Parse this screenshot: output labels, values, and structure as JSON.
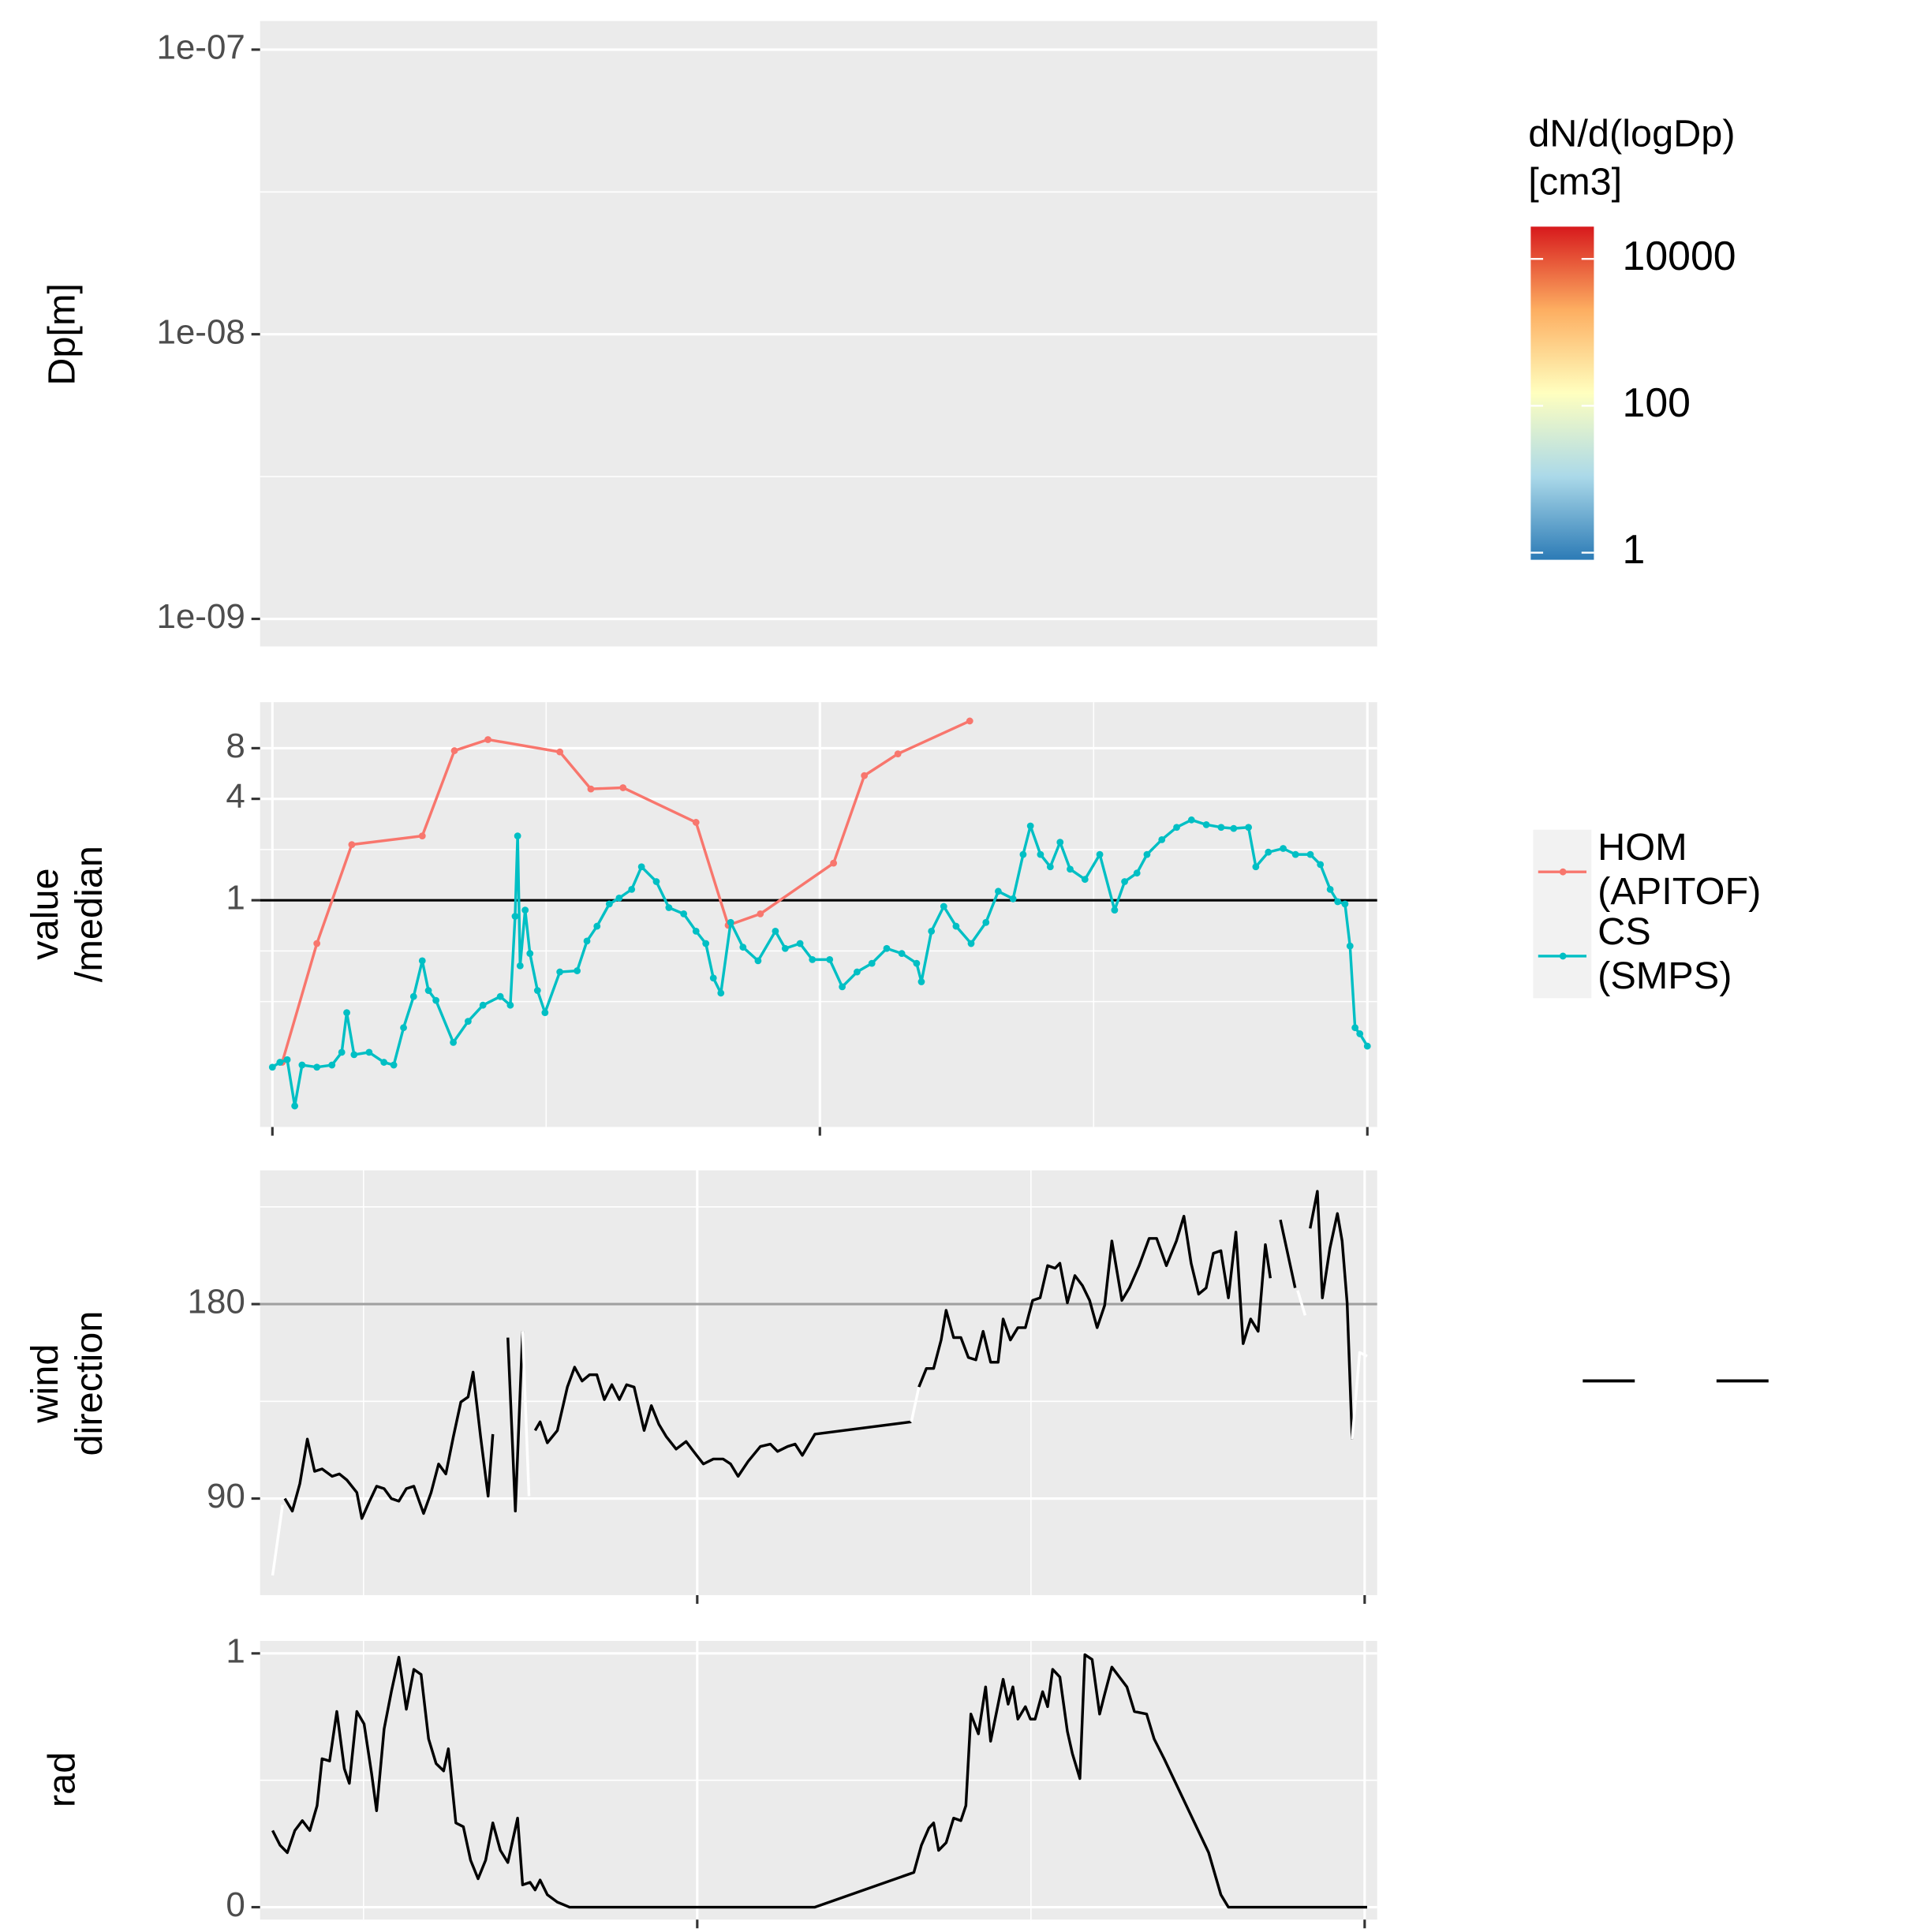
{
  "chart_data": [
    {
      "type": "heatmap",
      "ylabel": "Dp[m]",
      "ylog": true,
      "ylim": [
        8e-10,
        1.26e-07
      ],
      "yticks": [
        {
          "value": 1e-09,
          "label": "1e-09"
        },
        {
          "value": 1e-08,
          "label": "1e-08"
        },
        {
          "value": 1e-07,
          "label": "1e-07"
        }
      ],
      "minor_yticks": [
        3.162e-09,
        3.162e-08
      ],
      "grid": true,
      "colorbar": {
        "title": "dN/d(logDp)\n[cm3]",
        "log": true,
        "lim": [
          0.8,
          27500
        ],
        "ticks": [
          1,
          100,
          10000
        ],
        "colors": [
          "#2C7BB6",
          "#ABD9E9",
          "#FFFFBF",
          "#FDAE61",
          "#D7191C"
        ]
      }
    },
    {
      "type": "line",
      "ylabel": "value\n/median",
      "ylog": true,
      "ylim": [
        0.045,
        15
      ],
      "yticks": [
        1,
        4,
        8
      ],
      "minor_yticks": [
        0.25,
        0.5,
        2
      ],
      "xlim": [
        -0.54,
        48.43
      ],
      "xticks": [
        0,
        24,
        48
      ],
      "minor_xticks": [
        12,
        36
      ],
      "grid": true,
      "hline": {
        "value": 1,
        "color": "#000000"
      },
      "legend": "right",
      "markers": true,
      "series": [
        {
          "name": "HOM\n(APITOF)",
          "color": "#F8766D",
          "x": [
            0.43,
            1.95,
            3.48,
            6.57,
            7.98,
            9.45,
            12.6,
            13.96,
            15.37,
            18.57,
            19.98,
            21.39,
            24.6,
            25.95,
            27.42,
            30.57
          ],
          "values": [
            0.109,
            0.553,
            2.14,
            2.41,
            7.73,
            9.0,
            7.6,
            4.58,
            4.66,
            2.9,
            0.71,
            0.83,
            1.66,
            5.5,
            7.4,
            11.6
          ]
        },
        {
          "name": "CS\n(SMPS)",
          "color": "#00BFC4",
          "x": [
            0,
            0.33,
            0.65,
            0.98,
            1.3,
            1.95,
            2.61,
            3.04,
            3.26,
            3.58,
            4.24,
            4.89,
            5.32,
            5.75,
            6.19,
            6.57,
            6.84,
            7.17,
            7.93,
            8.58,
            9.23,
            9.99,
            10.43,
            10.64,
            10.75,
            10.86,
            11.08,
            11.29,
            11.62,
            11.95,
            12.6,
            13.36,
            13.79,
            14.23,
            14.77,
            15.2,
            15.75,
            16.18,
            16.83,
            17.38,
            18.03,
            18.57,
            19.0,
            19.33,
            19.66,
            20.09,
            20.63,
            21.29,
            22.05,
            22.48,
            23.13,
            23.67,
            24.43,
            24.98,
            25.63,
            26.28,
            26.93,
            27.59,
            28.24,
            28.45,
            28.89,
            29.43,
            29.97,
            30.63,
            31.28,
            31.82,
            32.47,
            32.91,
            33.23,
            33.67,
            34.1,
            34.53,
            34.97,
            35.62,
            36.27,
            36.92,
            37.36,
            37.9,
            38.34,
            38.99,
            39.64,
            40.29,
            40.94,
            41.59,
            42.14,
            42.79,
            43.11,
            43.66,
            44.31,
            44.85,
            45.5,
            45.94,
            46.37,
            46.7,
            47.02,
            47.24,
            47.46,
            47.67,
            48.0
          ],
          "values": [
            0.102,
            0.109,
            0.113,
            0.06,
            0.105,
            0.102,
            0.105,
            0.125,
            0.215,
            0.121,
            0.125,
            0.109,
            0.105,
            0.175,
            0.268,
            0.437,
            0.291,
            0.254,
            0.143,
            0.191,
            0.238,
            0.268,
            0.238,
            0.803,
            2.41,
            0.408,
            0.874,
            0.483,
            0.291,
            0.215,
            0.375,
            0.381,
            0.572,
            0.701,
            0.95,
            1.03,
            1.16,
            1.58,
            1.29,
            0.904,
            0.83,
            0.655,
            0.553,
            0.345,
            0.281,
            0.738,
            0.526,
            0.437,
            0.655,
            0.517,
            0.553,
            0.444,
            0.444,
            0.306,
            0.375,
            0.422,
            0.517,
            0.483,
            0.422,
            0.328,
            0.655,
            0.919,
            0.701,
            0.553,
            0.738,
            1.13,
            1.02,
            1.87,
            2.76,
            1.87,
            1.58,
            2.21,
            1.53,
            1.33,
            1.87,
            0.874,
            1.29,
            1.45,
            1.87,
            2.29,
            2.71,
            3.0,
            2.81,
            2.71,
            2.67,
            2.71,
            1.58,
            1.93,
            2.03,
            1.87,
            1.87,
            1.63,
            1.16,
            0.98,
            0.95,
            0.535,
            0.175,
            0.161,
            0.136
          ]
        }
      ]
    },
    {
      "type": "line",
      "ylabel": "wind\ndirection",
      "ylim": [
        45.3,
        241.9
      ],
      "yticks": [
        90,
        180
      ],
      "minor_yticks": [
        135,
        225
      ],
      "xlim": [
        8.28,
        48.45
      ],
      "xticks": [
        24,
        48
      ],
      "minor_xticks": [
        12,
        36
      ],
      "grid": true,
      "hline": {
        "value": 180,
        "color": "#A0A0A0"
      },
      "series": [
        {
          "color": "#000000",
          "x": [
            9.17,
            9.44,
            9.71,
            9.98,
            10.24,
            10.51,
            10.87,
            11.13,
            11.4,
            11.76,
            11.94,
            12.2,
            12.47,
            12.74,
            13.0,
            13.27,
            13.54,
            13.81,
            14.16,
            14.43,
            14.7,
            14.96,
            15.23,
            15.5,
            15.76,
            15.94,
            16.21,
            16.48,
            16.65,
            null,
            17.19,
            17.46,
            17.72,
            null,
            18.17,
            18.35,
            18.61,
            18.97,
            19.33,
            19.59,
            19.86,
            20.13,
            20.39,
            20.66,
            20.93,
            21.2,
            21.46,
            21.73,
            22.09,
            22.35,
            22.62,
            22.89,
            23.24,
            23.6,
            23.87,
            24.22,
            24.58,
            24.93,
            25.2,
            25.47,
            25.83,
            26.27,
            26.63,
            26.89,
            27.25,
            27.52,
            27.78,
            28.23,
            31.7,
            null,
            31.97,
            32.24,
            32.5,
            32.77,
            32.95,
            33.22,
            33.48,
            33.75,
            34.02,
            34.28,
            34.55,
            34.82,
            35.0,
            35.26,
            35.53,
            35.8,
            36.06,
            36.33,
            36.6,
            36.87,
            37.04,
            37.31,
            37.58,
            37.85,
            38.11,
            38.38,
            38.65,
            38.91,
            39.27,
            39.54,
            39.89,
            40.25,
            40.52,
            40.87,
            41.23,
            41.5,
            41.76,
            42.03,
            42.3,
            42.56,
            42.83,
            43.1,
            43.37,
            43.63,
            43.9,
            44.17,
            44.43,
            44.61,
            null,
            44.97,
            45.5,
            null,
            46.04,
            46.3,
            46.48,
            46.75,
            47.02,
            47.19,
            47.37,
            47.55
          ],
          "values": [
            90.0,
            84.2,
            96.9,
            117.5,
            102.6,
            103.7,
            100.3,
            101.4,
            98.6,
            92.8,
            80.8,
            88.3,
            95.7,
            94.6,
            90.0,
            88.8,
            94.6,
            95.7,
            83.1,
            92.8,
            106.0,
            101.4,
            118.6,
            134.7,
            137.0,
            148.5,
            118.6,
            91.1,
            119.8,
            null,
            164.5,
            84.2,
            167.4,
            null,
            121.5,
            125.5,
            115.8,
            121.5,
            141.6,
            150.8,
            144.4,
            147.3,
            147.3,
            135.8,
            142.7,
            135.8,
            142.7,
            141.6,
            121.5,
            133.0,
            124.4,
            118.6,
            112.9,
            116.4,
            111.8,
            106.0,
            108.3,
            108.3,
            106.0,
            100.3,
            107.2,
            114.1,
            115.2,
            111.8,
            114.1,
            115.2,
            110.0,
            119.8,
            125.5,
            null,
            141.6,
            150.2,
            150.2,
            163.4,
            177.1,
            164.5,
            164.5,
            155.3,
            154.2,
            167.4,
            153.1,
            153.1,
            173.1,
            163.4,
            169.1,
            169.1,
            181.7,
            182.9,
            197.8,
            196.6,
            198.9,
            180.6,
            193.2,
            188.6,
            181.7,
            169.1,
            179.4,
            209.2,
            181.7,
            187.5,
            197.8,
            210.4,
            210.4,
            197.8,
            209.2,
            220.7,
            198.9,
            184.6,
            187.5,
            203.5,
            204.7,
            182.9,
            213.3,
            161.7,
            173.1,
            167.4,
            207.5,
            192.0,
            null,
            219.0,
            187.5,
            null,
            215.0,
            232.2,
            182.9,
            205.8,
            221.9,
            209.2,
            180.6,
            117.5
          ]
        },
        {
          "color": "#FFFFFF",
          "x": [
            8.73,
            9.09,
            null,
            17.72,
            17.95,
            null,
            31.7,
            31.97,
            null,
            45.59,
            45.86,
            null,
            47.55,
            47.82,
            48.09
          ],
          "values": [
            54.4,
            87.1,
            null,
            167.4,
            91.1,
            null,
            125.5,
            141.6,
            null,
            186.3,
            174.8,
            null,
            117.5,
            157.6,
            155.9
          ]
        }
      ]
    },
    {
      "type": "line",
      "ylabel": "rad",
      "ylim": [
        -0.049,
        1.049
      ],
      "yticks": [
        0,
        1
      ],
      "minor_yticks": [
        0.5
      ],
      "xlim": [
        8.28,
        48.45
      ],
      "xticks": [
        24,
        48
      ],
      "minor_xticks": [
        12,
        36
      ],
      "grid": true,
      "series": [
        {
          "color": "#000000",
          "x": [
            8.73,
            9.0,
            9.26,
            9.53,
            9.8,
            10.07,
            10.33,
            10.51,
            10.78,
            11.04,
            11.31,
            11.49,
            11.76,
            12.02,
            12.29,
            12.47,
            12.74,
            13.0,
            13.27,
            13.54,
            13.81,
            14.07,
            14.34,
            14.61,
            14.88,
            15.05,
            15.32,
            15.59,
            15.85,
            16.12,
            16.39,
            16.65,
            16.92,
            17.19,
            17.54,
            17.72,
            17.99,
            18.17,
            18.35,
            18.61,
            18.97,
            19.41,
            22.98,
            28.23,
            31.79,
            32.06,
            32.33,
            32.5,
            32.68,
            32.95,
            33.22,
            33.48,
            33.66,
            33.84,
            34.11,
            34.37,
            34.55,
            34.73,
            35.0,
            35.18,
            35.35,
            35.53,
            35.8,
            35.98,
            36.15,
            36.42,
            36.6,
            36.78,
            37.04,
            37.31,
            37.49,
            37.76,
            37.94,
            38.2,
            38.47,
            38.65,
            38.91,
            39.18,
            39.45,
            39.72,
            40.16,
            40.43,
            40.79,
            42.39,
            42.83,
            43.1,
            48.09
          ],
          "values": [
            0.302,
            0.244,
            0.215,
            0.302,
            0.341,
            0.302,
            0.4,
            0.585,
            0.576,
            0.771,
            0.546,
            0.488,
            0.771,
            0.722,
            0.527,
            0.38,
            0.702,
            0.849,
            0.985,
            0.78,
            0.937,
            0.917,
            0.663,
            0.566,
            0.537,
            0.624,
            0.332,
            0.317,
            0.185,
            0.112,
            0.185,
            0.332,
            0.224,
            0.176,
            0.351,
            0.088,
            0.098,
            0.068,
            0.107,
            0.049,
            0.02,
            0,
            0,
            0,
            0.137,
            0.244,
            0.312,
            0.332,
            0.224,
            0.254,
            0.351,
            0.341,
            0.4,
            0.761,
            0.683,
            0.868,
            0.654,
            0.751,
            0.898,
            0.8,
            0.868,
            0.741,
            0.79,
            0.741,
            0.741,
            0.849,
            0.79,
            0.937,
            0.907,
            0.693,
            0.605,
            0.507,
            0.995,
            0.976,
            0.761,
            0.839,
            0.946,
            0.907,
            0.868,
            0.771,
            0.761,
            0.663,
            0.585,
            0.215,
            0.049,
            0,
            0
          ]
        }
      ]
    }
  ]
}
